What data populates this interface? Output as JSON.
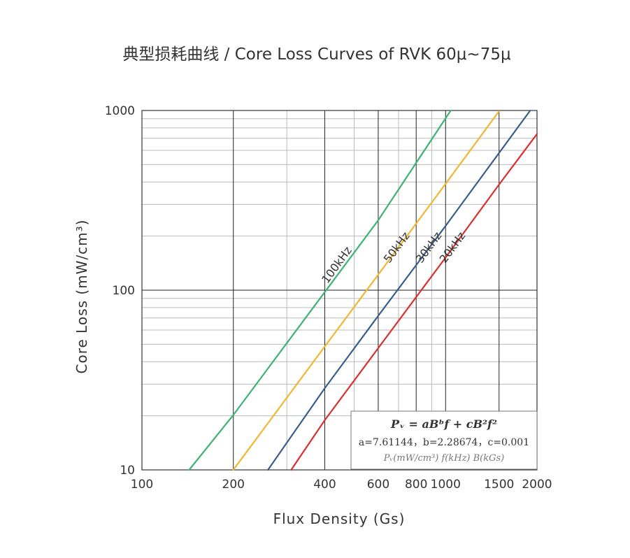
{
  "chart_data": {
    "type": "line",
    "title": "典型损耗曲线 / Core Loss Curves of RVK 60μ~75μ",
    "xlabel": "Flux Density (Gs)",
    "ylabel": "Core Loss (mW/cm³)",
    "x_scale": "log",
    "y_scale": "log",
    "xlim": [
      100,
      2000
    ],
    "ylim": [
      10,
      1000
    ],
    "x_ticks": [
      100,
      200,
      400,
      600,
      800,
      1000,
      1500,
      2000
    ],
    "x_tick_labels": [
      "100",
      "200",
      "400",
      "600",
      "800",
      "1000",
      "1500",
      "2000"
    ],
    "y_ticks": [
      10,
      100,
      1000
    ],
    "y_tick_labels": [
      "10",
      "100",
      "1000"
    ],
    "grid": true,
    "series": [
      {
        "name": "100kHz",
        "color": "#3cb371",
        "freq_khz": 100,
        "x": [
          143,
          200,
          400,
          600,
          1040
        ],
        "y": [
          10,
          20.2,
          97.6,
          245,
          1000
        ]
      },
      {
        "name": "50kHz",
        "color": "#f0b630",
        "freq_khz": 50,
        "x": [
          200,
          400,
          600,
          800,
          1000,
          1500
        ],
        "y": [
          10,
          48.6,
          122,
          235,
          391,
          990
        ]
      },
      {
        "name": "30kHz",
        "color": "#3a5e8c",
        "freq_khz": 30,
        "x": [
          260,
          400,
          600,
          800,
          1000,
          1500,
          1900
        ],
        "y": [
          10,
          28.5,
          72,
          138,
          228,
          580,
          1000
        ]
      },
      {
        "name": "20kHz",
        "color": "#d92f2f",
        "freq_khz": 20,
        "x": [
          310,
          400,
          600,
          800,
          1000,
          1500,
          2000
        ],
        "y": [
          10,
          18.9,
          47.6,
          91.6,
          152,
          387,
          740
        ]
      }
    ],
    "annotations": {
      "formula_main": "Pᵥ = aBᵇf + cB²f²",
      "formula_params": "a=7.61144，b=2.28674，c=0.001",
      "formula_units": "Pᵥ(mW/cm³) f(kHz) B(kGs)"
    }
  },
  "colors": {
    "grid_major": "#222222",
    "grid_minor": "#bbbbbb",
    "axis": "#333333",
    "background": "#ffffff"
  }
}
